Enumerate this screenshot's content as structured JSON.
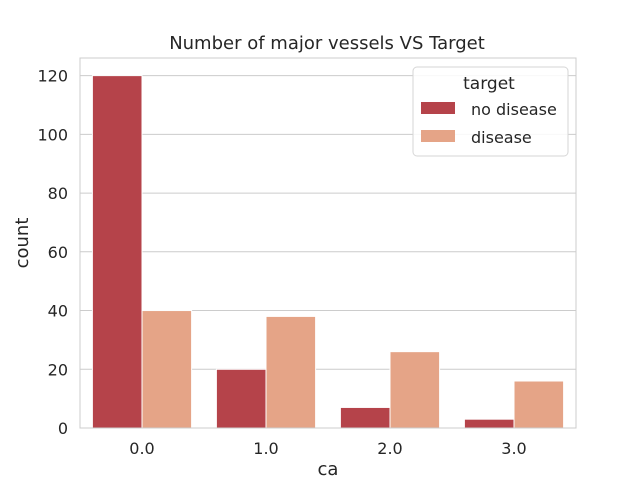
{
  "chart_data": {
    "type": "bar",
    "title": "Number of major vessels VS Target",
    "xlabel": "ca",
    "ylabel": "count",
    "categories": [
      "0.0",
      "1.0",
      "2.0",
      "3.0"
    ],
    "series": [
      {
        "name": "no disease",
        "values": [
          120,
          20,
          7,
          3
        ],
        "color": "#b5434a"
      },
      {
        "name": "disease",
        "values": [
          40,
          38,
          26,
          16
        ],
        "color": "#e5a487"
      }
    ],
    "ylim": [
      0,
      126
    ],
    "yticks": [
      0,
      20,
      40,
      60,
      80,
      100,
      120
    ],
    "grid": "horizontal",
    "legend": {
      "title": "target",
      "placement": "top-right"
    }
  }
}
